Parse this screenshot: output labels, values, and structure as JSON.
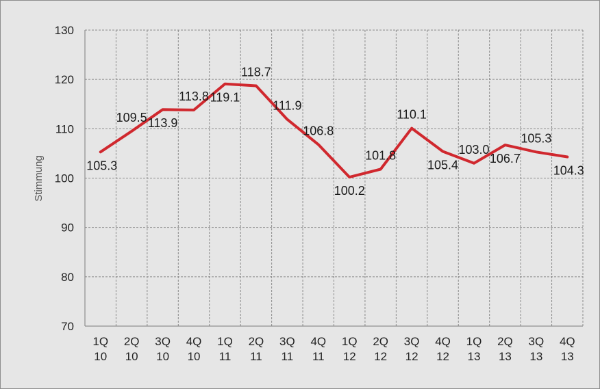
{
  "chart_data": {
    "type": "line",
    "title": "",
    "xlabel": "",
    "ylabel": "Stimmung",
    "ylim": [
      70,
      130
    ],
    "yticks": [
      "70",
      "80",
      "90",
      "100",
      "110",
      "120",
      "130"
    ],
    "grid": true,
    "categories": [
      [
        "1Q",
        "10"
      ],
      [
        "2Q",
        "10"
      ],
      [
        "3Q",
        "10"
      ],
      [
        "4Q",
        "10"
      ],
      [
        "1Q",
        "11"
      ],
      [
        "2Q",
        "11"
      ],
      [
        "3Q",
        "11"
      ],
      [
        "4Q",
        "11"
      ],
      [
        "1Q",
        "12"
      ],
      [
        "2Q",
        "12"
      ],
      [
        "3Q",
        "12"
      ],
      [
        "4Q",
        "12"
      ],
      [
        "1Q",
        "13"
      ],
      [
        "2Q",
        "13"
      ],
      [
        "3Q",
        "13"
      ],
      [
        "4Q",
        "13"
      ]
    ],
    "series": [
      {
        "values": [
          105.3,
          109.5,
          113.9,
          113.8,
          119.1,
          118.7,
          111.9,
          106.8,
          100.2,
          101.8,
          110.1,
          105.4,
          103.0,
          106.7,
          105.3,
          104.3
        ],
        "data_labels": [
          "105.3",
          "109.5",
          "113.9",
          "113.8",
          "119.1",
          "118.7",
          "111.9",
          "106.8",
          "100.2",
          "101.8",
          "110.1",
          "105.4",
          "103.0",
          "106.7",
          "105.3",
          "104.3"
        ],
        "color": "#d0282e"
      }
    ]
  }
}
